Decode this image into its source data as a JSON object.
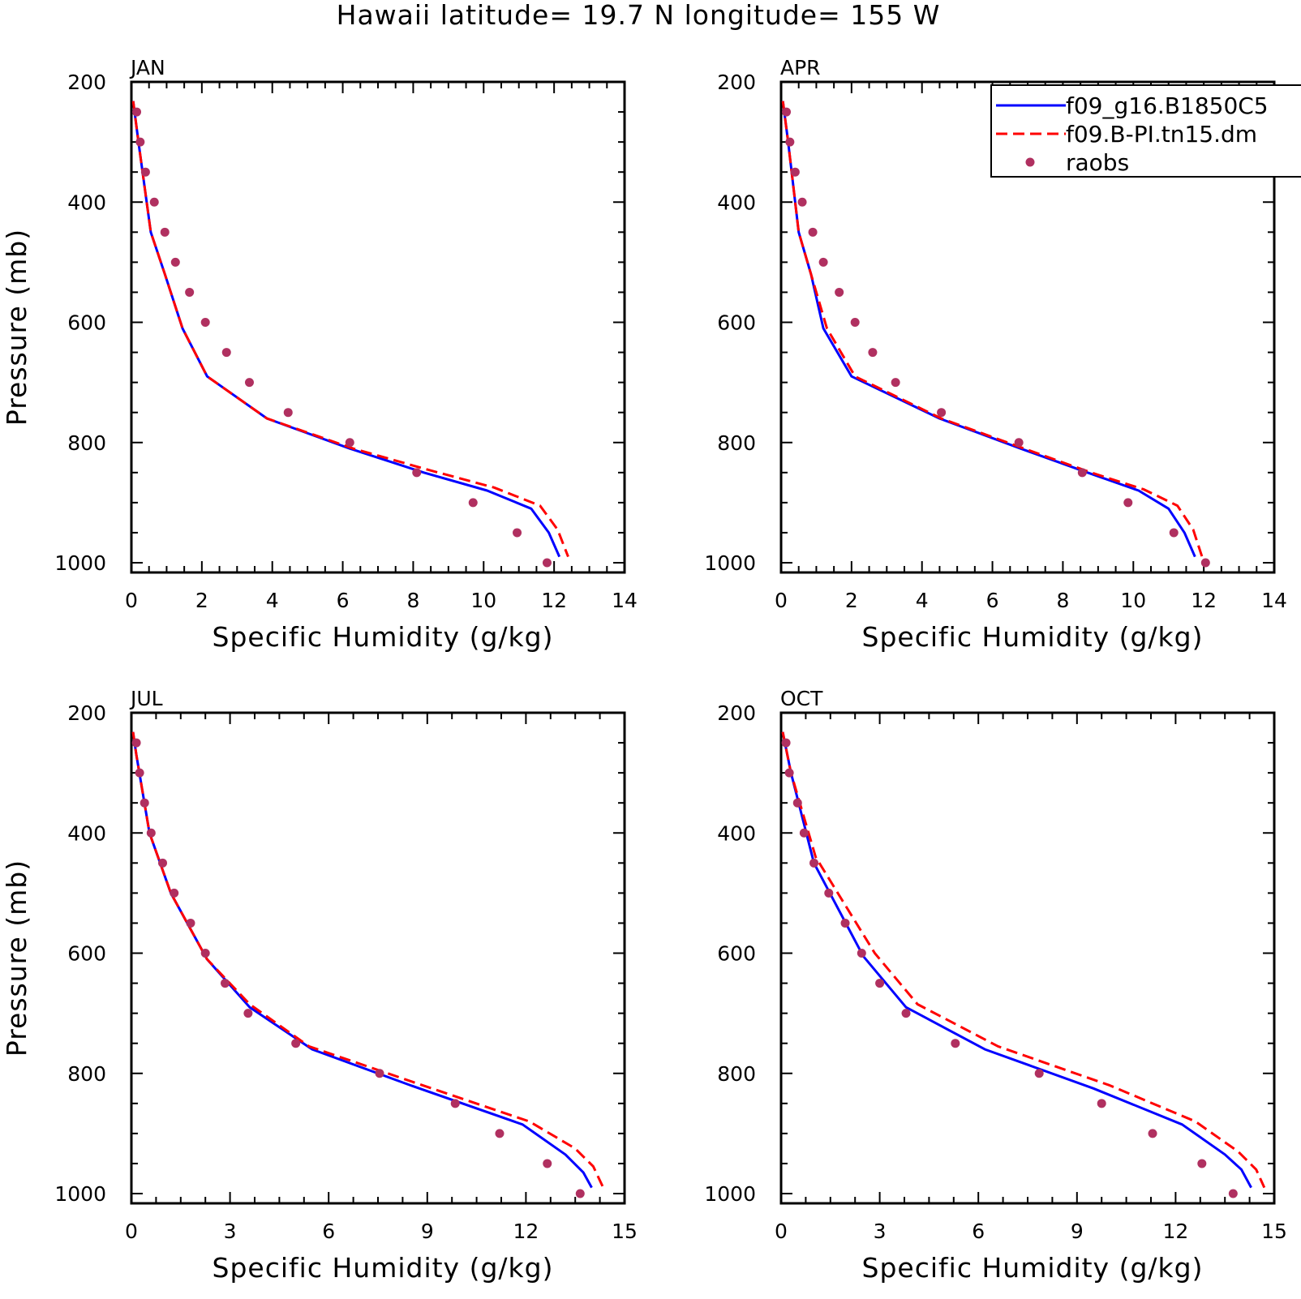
{
  "title": "Hawaii  latitude= 19.7 N longitude= 155 W",
  "chart_data": [
    {
      "type": "line",
      "panel": "JAN",
      "xlabel": "Specific Humidity (g/kg)",
      "ylabel": "Pressure (mb)",
      "xlim": [
        0,
        14
      ],
      "ylim": [
        200,
        1000
      ],
      "y_reversed": true,
      "xticks": [
        0,
        2,
        4,
        6,
        8,
        10,
        12,
        14
      ],
      "yticks": [
        200,
        400,
        600,
        800,
        1000
      ],
      "series": [
        {
          "name": "f09_g16.B1850C5",
          "style": "solid",
          "color": "#0000ff",
          "x": [
            0.05,
            0.2,
            0.55,
            0.95,
            1.45,
            2.15,
            3.85,
            6.2,
            8.3,
            10.1,
            11.35,
            11.85,
            12.15
          ],
          "y": [
            232,
            300,
            450,
            520,
            610,
            690,
            760,
            810,
            850,
            880,
            910,
            950,
            990
          ]
        },
        {
          "name": "f09.B-PI.tn15.dm",
          "style": "dashed",
          "color": "#ff0000",
          "x": [
            0.05,
            0.2,
            0.55,
            0.95,
            1.45,
            2.15,
            3.85,
            6.3,
            8.4,
            10.3,
            11.6,
            12.1,
            12.4
          ],
          "y": [
            232,
            300,
            450,
            520,
            610,
            690,
            760,
            810,
            845,
            875,
            905,
            945,
            990
          ]
        }
      ],
      "points": {
        "name": "raobs",
        "color": "#b03060",
        "x": [
          0.15,
          0.25,
          0.4,
          0.65,
          0.95,
          1.25,
          1.65,
          2.1,
          2.7,
          3.35,
          4.45,
          6.2,
          8.1,
          9.7,
          10.95,
          11.8
        ],
        "y": [
          250,
          300,
          350,
          400,
          450,
          500,
          550,
          600,
          650,
          700,
          750,
          800,
          850,
          900,
          950,
          1000
        ]
      }
    },
    {
      "type": "line",
      "panel": "APR",
      "xlabel": "Specific Humidity (g/kg)",
      "ylabel": "",
      "xlim": [
        0,
        14
      ],
      "ylim": [
        200,
        1000
      ],
      "y_reversed": true,
      "xticks": [
        0,
        2,
        4,
        6,
        8,
        10,
        12,
        14
      ],
      "yticks": [
        200,
        400,
        600,
        800,
        1000
      ],
      "legend": {
        "position": "top-right",
        "entries": [
          {
            "name": "f09_g16.B1850C5",
            "style": "solid",
            "color": "#0000ff"
          },
          {
            "name": "f09.B-PI.tn15.dm",
            "style": "dashed",
            "color": "#ff0000"
          },
          {
            "name": "raobs",
            "style": "marker",
            "color": "#b03060"
          }
        ]
      },
      "series": [
        {
          "name": "f09_g16.B1850C5",
          "style": "solid",
          "color": "#0000ff",
          "x": [
            0.05,
            0.2,
            0.5,
            0.85,
            1.2,
            2.0,
            4.5,
            6.8,
            8.7,
            10.15,
            11.0,
            11.45,
            11.75
          ],
          "y": [
            232,
            300,
            450,
            520,
            610,
            690,
            760,
            810,
            850,
            880,
            910,
            950,
            990
          ]
        },
        {
          "name": "f09.B-PI.tn15.dm",
          "style": "dashed",
          "color": "#ff0000",
          "x": [
            0.05,
            0.2,
            0.5,
            0.85,
            1.3,
            2.1,
            4.55,
            6.9,
            8.8,
            10.3,
            11.25,
            11.7,
            11.95
          ],
          "y": [
            232,
            300,
            450,
            520,
            610,
            690,
            760,
            810,
            850,
            878,
            905,
            945,
            990
          ]
        }
      ],
      "points": {
        "name": "raobs",
        "color": "#b03060",
        "x": [
          0.15,
          0.25,
          0.4,
          0.6,
          0.9,
          1.2,
          1.65,
          2.1,
          2.6,
          3.25,
          4.55,
          6.75,
          8.55,
          9.85,
          11.15,
          12.05
        ],
        "y": [
          250,
          300,
          350,
          400,
          450,
          500,
          550,
          600,
          650,
          700,
          750,
          800,
          850,
          900,
          950,
          1000
        ]
      }
    },
    {
      "type": "line",
      "panel": "JUL",
      "xlabel": "Specific Humidity (g/kg)",
      "ylabel": "Pressure (mb)",
      "xlim": [
        0,
        15
      ],
      "ylim": [
        200,
        1000
      ],
      "y_reversed": true,
      "xticks": [
        0,
        3,
        6,
        9,
        12,
        15
      ],
      "yticks": [
        200,
        400,
        600,
        800,
        1000
      ],
      "series": [
        {
          "name": "f09_g16.B1850C5",
          "style": "solid",
          "color": "#0000ff",
          "x": [
            0.05,
            0.15,
            0.55,
            1.2,
            2.3,
            3.6,
            5.5,
            8.5,
            11.9,
            13.2,
            13.75,
            14.0
          ],
          "y": [
            232,
            270,
            400,
            500,
            610,
            690,
            760,
            820,
            885,
            935,
            965,
            990
          ]
        },
        {
          "name": "f09.B-PI.tn15.dm",
          "style": "dashed",
          "color": "#ff0000",
          "x": [
            0.05,
            0.15,
            0.55,
            1.2,
            2.3,
            3.6,
            5.4,
            8.6,
            12.1,
            13.5,
            14.05,
            14.35
          ],
          "y": [
            232,
            270,
            400,
            500,
            610,
            685,
            755,
            815,
            880,
            925,
            955,
            990
          ]
        }
      ],
      "points": {
        "name": "raobs",
        "color": "#b03060",
        "x": [
          0.15,
          0.25,
          0.4,
          0.6,
          0.95,
          1.3,
          1.8,
          2.25,
          2.85,
          3.55,
          5.0,
          7.55,
          9.85,
          11.2,
          12.65,
          13.65
        ],
        "y": [
          250,
          300,
          350,
          400,
          450,
          500,
          550,
          600,
          650,
          700,
          750,
          800,
          850,
          900,
          950,
          1000
        ]
      }
    },
    {
      "type": "line",
      "panel": "OCT",
      "xlabel": "Specific Humidity (g/kg)",
      "ylabel": "",
      "xlim": [
        0,
        15
      ],
      "ylim": [
        200,
        1000
      ],
      "y_reversed": true,
      "xticks": [
        0,
        3,
        6,
        9,
        12,
        15
      ],
      "yticks": [
        200,
        400,
        600,
        800,
        1000
      ],
      "series": [
        {
          "name": "f09_g16.B1850C5",
          "style": "solid",
          "color": "#0000ff",
          "x": [
            0.05,
            0.3,
            1.0,
            2.5,
            3.8,
            6.2,
            9.5,
            12.2,
            13.5,
            14.0,
            14.3
          ],
          "y": [
            232,
            300,
            450,
            605,
            690,
            760,
            825,
            885,
            935,
            960,
            990
          ]
        },
        {
          "name": "f09.B-PI.tn15.dm",
          "style": "dashed",
          "color": "#ff0000",
          "x": [
            0.05,
            0.3,
            1.05,
            2.85,
            4.15,
            6.6,
            10.0,
            12.6,
            13.9,
            14.45,
            14.7
          ],
          "y": [
            232,
            300,
            440,
            600,
            685,
            755,
            820,
            880,
            930,
            960,
            990
          ]
        }
      ],
      "points": {
        "name": "raobs",
        "color": "#b03060",
        "x": [
          0.15,
          0.25,
          0.5,
          0.7,
          1.0,
          1.45,
          1.95,
          2.45,
          3.0,
          3.8,
          5.3,
          7.85,
          9.75,
          11.3,
          12.8,
          13.75
        ],
        "y": [
          250,
          300,
          350,
          400,
          450,
          500,
          550,
          600,
          650,
          700,
          750,
          800,
          850,
          900,
          950,
          1000
        ]
      }
    }
  ]
}
